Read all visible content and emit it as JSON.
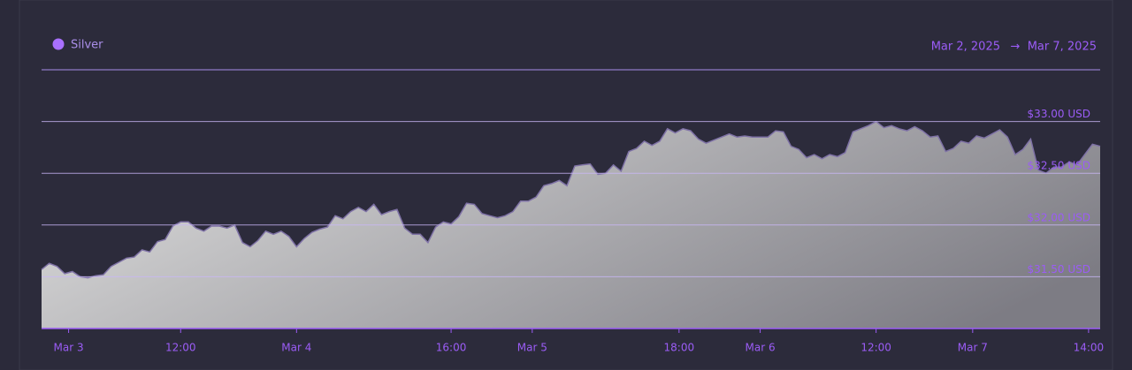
{
  "chart_data": {
    "type": "area",
    "series": [
      {
        "name": "Silver",
        "color": "#a970ff",
        "values": [
          31.57,
          31.63,
          31.6,
          31.53,
          31.55,
          31.5,
          31.49,
          31.51,
          31.52,
          31.6,
          31.64,
          31.68,
          31.69,
          31.76,
          31.74,
          31.84,
          31.86,
          31.99,
          32.03,
          32.03,
          31.97,
          31.94,
          31.99,
          31.99,
          31.97,
          32.0,
          31.83,
          31.79,
          31.85,
          31.94,
          31.91,
          31.94,
          31.89,
          31.79,
          31.87,
          31.93,
          31.96,
          31.98,
          32.09,
          32.06,
          32.13,
          32.17,
          32.13,
          32.2,
          32.1,
          32.13,
          32.15,
          31.97,
          31.91,
          31.91,
          31.83,
          31.98,
          32.03,
          32.01,
          32.08,
          32.21,
          32.2,
          32.11,
          32.09,
          32.07,
          32.09,
          32.13,
          32.23,
          32.23,
          32.27,
          32.38,
          32.4,
          32.43,
          32.38,
          32.57,
          32.58,
          32.59,
          32.49,
          32.5,
          32.58,
          32.52,
          32.71,
          32.74,
          32.81,
          32.77,
          32.81,
          32.93,
          32.89,
          32.93,
          32.91,
          32.83,
          32.79,
          32.82,
          32.85,
          32.88,
          32.85,
          32.86,
          32.85,
          32.85,
          32.85,
          32.91,
          32.9,
          32.76,
          32.73,
          32.65,
          32.68,
          32.64,
          32.68,
          32.66,
          32.7,
          32.9,
          32.93,
          32.96,
          33.0,
          32.94,
          32.96,
          32.93,
          32.91,
          32.95,
          32.91,
          32.85,
          32.86,
          32.71,
          32.74,
          32.81,
          32.79,
          32.86,
          32.84,
          32.88,
          32.92,
          32.85,
          32.68,
          32.73,
          32.83,
          32.53,
          32.5,
          32.56,
          32.56,
          32.61,
          32.58,
          32.68,
          32.78,
          32.76
        ]
      }
    ],
    "date_range_start": "Mar 2, 2025",
    "date_range_arrow": "→",
    "date_range_end": "Mar 7, 2025",
    "ylim": [
      31,
      33.5
    ],
    "yticks": [
      {
        "value": 33,
        "label": "$33.00 USD"
      },
      {
        "value": 32.5,
        "label": "$32.50 USD"
      },
      {
        "value": 32,
        "label": "$32.00 USD"
      },
      {
        "value": 31.5,
        "label": "$31.50 USD"
      }
    ],
    "xticks": [
      {
        "value": 3.5,
        "label": "Mar 3"
      },
      {
        "value": 18,
        "label": "12:00"
      },
      {
        "value": 33,
        "label": "Mar 4"
      },
      {
        "value": 53,
        "label": "16:00"
      },
      {
        "value": 63.5,
        "label": "Mar 5"
      },
      {
        "value": 82.5,
        "label": "18:00"
      },
      {
        "value": 93,
        "label": "Mar 6"
      },
      {
        "value": 108,
        "label": "12:00"
      },
      {
        "value": 120.5,
        "label": "Mar 7"
      },
      {
        "value": 135.5,
        "label": "14:00"
      }
    ],
    "grid": true
  }
}
